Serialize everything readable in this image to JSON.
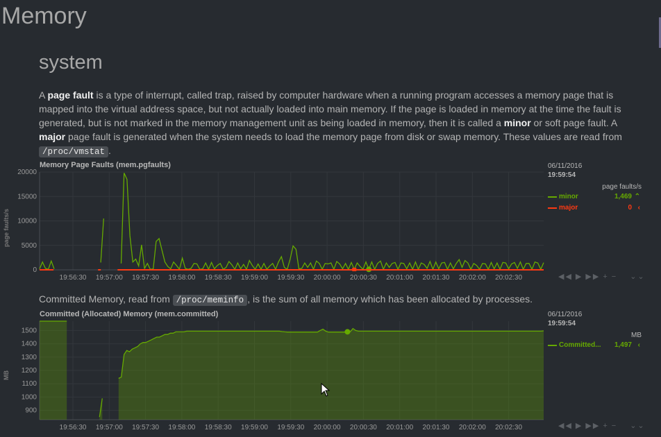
{
  "page": {
    "title": "Memory",
    "section": "system",
    "intro": {
      "p1": "A ",
      "k1": "page fault",
      "p2": " is a type of interrupt, called trap, raised by computer hardware when a running program accesses a memory page that is mapped into the virtual address space, but not actually loaded into main memory. If the page is loaded in memory at the time the fault is generated, but is not marked in the memory management unit as being loaded in memory, then it is called a ",
      "k2": "minor",
      "p3": " or soft page fault. A ",
      "k3": "major",
      "p4": " page fault is generated when the system needs to load the memory page from disk or swap memory. These values are read from ",
      "code": "/proc/vmstat",
      "p5": "."
    },
    "committed_intro": {
      "p1": "Committed Memory, read from ",
      "code": "/proc/meminfo",
      "p2": ", is the sum of all memory which has been allocated by processes."
    }
  },
  "colors": {
    "minor": "#66aa00",
    "major": "#fe3912",
    "committed": "#66aa00"
  },
  "toolbar": {
    "icons": [
      "rewind-icon",
      "play-icon",
      "forward-icon",
      "zoom-in-icon",
      "zoom-out-icon",
      "resize-icon"
    ],
    "glyphs": [
      "◀◀",
      "▶",
      "▶▶",
      "+",
      "−",
      "⌄⌄"
    ]
  },
  "legend1": {
    "date": "06/11/2016",
    "time": "19:59:54",
    "units": "page faults/s",
    "series": [
      {
        "name": "minor",
        "value": "1,469",
        "arrow": "⌃"
      },
      {
        "name": "major",
        "value": "0",
        "arrow": "‹"
      }
    ]
  },
  "legend2": {
    "date": "06/11/2016",
    "time": "19:59:54",
    "units": "MB",
    "series": [
      {
        "name": "Committed...",
        "value": "1,497",
        "arrow": "‹"
      }
    ]
  },
  "chart_data": [
    {
      "type": "line",
      "title": "Memory Page Faults (mem.pgfaults)",
      "ylabel": "page faults/s",
      "ylim": [
        0,
        20000
      ],
      "yticks": [
        0,
        5000,
        10000,
        15000,
        20000
      ],
      "xticks": [
        "19:56:30",
        "19:57:00",
        "19:57:30",
        "19:58:00",
        "19:58:30",
        "19:59:00",
        "19:59:30",
        "20:00:00",
        "20:00:30",
        "20:01:00",
        "20:01:30",
        "20:02:00",
        "20:02:30"
      ],
      "series": [
        {
          "name": "minor",
          "values": [
            200,
            1600,
            300,
            100,
            1800,
            200,
            null,
            null,
            null,
            null,
            null,
            null,
            null,
            null,
            null,
            null,
            null,
            null,
            null,
            null,
            null,
            1500,
            10500,
            null,
            null,
            null,
            null,
            null,
            1300,
            19800,
            18500,
            7000,
            1600,
            2200,
            800,
            5100,
            300,
            1300,
            100,
            200,
            5800,
            6400,
            4000,
            1600,
            700,
            200,
            1600,
            900,
            100,
            2400,
            300,
            100,
            300,
            1300,
            1200,
            100,
            200,
            1400,
            100,
            1500,
            200,
            900,
            1300,
            100,
            500,
            1700,
            1000,
            100,
            1400,
            200,
            1100,
            100,
            1900,
            900,
            100,
            1200,
            100,
            1300,
            100,
            800,
            1300,
            100,
            1600,
            2700,
            500,
            100,
            2200,
            4900,
            4200,
            200,
            300,
            1400,
            500,
            1400,
            100,
            1800,
            1300,
            100,
            1300,
            1200,
            1400,
            100,
            1700,
            1200,
            200,
            1300,
            100,
            1500,
            100,
            1400,
            700,
            100,
            1600,
            100,
            1600,
            100,
            1300,
            1800,
            100,
            1400,
            500,
            1300,
            1500,
            100,
            1400,
            1300,
            200,
            1400,
            100,
            1600,
            100,
            1400,
            1100,
            300,
            1700,
            100,
            1600,
            200,
            1400,
            1500,
            100,
            1400,
            200,
            1300,
            2100,
            500,
            1900,
            1400,
            100,
            1300,
            900,
            100,
            1300,
            1200,
            100,
            1500,
            200,
            1400,
            100,
            1500,
            1400,
            200,
            1200,
            1500,
            300,
            1600,
            100,
            1300,
            1300,
            100,
            1600,
            1400,
            100,
            1469
          ]
        },
        {
          "name": "major",
          "values": [
            0,
            0,
            0,
            0,
            0,
            0,
            null,
            null,
            null,
            null,
            null,
            null,
            null,
            null,
            null,
            null,
            null,
            null,
            null,
            null,
            null,
            0,
            0,
            null,
            null,
            null,
            null,
            null,
            0,
            0,
            0,
            0,
            0,
            0,
            0,
            0,
            0,
            0,
            0,
            0,
            0,
            0,
            0,
            0,
            0,
            0,
            0,
            0,
            0,
            0,
            0,
            0,
            0,
            0,
            0,
            0,
            0,
            0,
            0,
            0,
            0,
            0,
            0,
            0,
            0,
            0,
            0,
            0,
            0,
            0,
            0,
            0,
            0,
            0,
            0,
            0,
            0,
            0,
            0,
            0,
            0,
            0,
            0,
            0,
            0,
            0,
            0,
            0,
            0,
            0,
            0,
            0,
            0,
            0,
            0,
            0,
            0,
            0,
            0,
            0,
            0,
            0,
            0,
            0,
            0,
            0,
            0,
            0,
            0,
            0,
            0,
            0,
            0,
            0,
            0,
            0,
            0,
            0,
            0,
            0,
            0,
            0,
            0,
            0,
            0,
            0,
            0,
            0,
            0,
            0,
            0,
            0,
            0,
            0,
            0,
            0,
            0,
            0,
            0,
            0,
            0,
            0,
            0,
            0,
            0,
            0,
            0,
            0,
            0,
            0,
            0,
            0,
            0,
            0,
            0,
            0,
            0,
            0,
            0,
            0,
            0,
            0,
            0,
            0,
            0,
            0,
            0,
            0,
            0,
            0,
            0,
            0,
            0,
            0,
            0,
            0,
            0,
            0,
            0,
            0,
            0,
            0
          ]
        }
      ],
      "highlight_index": 113
    },
    {
      "type": "area",
      "title": "Committed (Allocated) Memory (mem.committed)",
      "ylabel": "MB",
      "ylim": [
        830,
        1570
      ],
      "yticks": [
        900,
        1000,
        1100,
        1200,
        1300,
        1400,
        1500
      ],
      "xticks": [
        "19:56:30",
        "19:57:00",
        "19:57:30",
        "19:58:00",
        "19:58:30",
        "19:59:00",
        "19:59:30",
        "20:00:00",
        "20:00:30",
        "20:01:00",
        "20:01:30",
        "20:02:00",
        "20:02:30"
      ],
      "series": [
        {
          "name": "Committed...",
          "values": [
            1570,
            1570,
            1570,
            1570,
            1570,
            1570,
            1570,
            1570,
            1570,
            1570,
            1570,
            null,
            null,
            null,
            null,
            null,
            null,
            null,
            null,
            null,
            null,
            null,
            850,
            990,
            null,
            null,
            null,
            null,
            null,
            1140,
            1150,
            1320,
            1350,
            1340,
            1360,
            1370,
            1380,
            1400,
            1410,
            1410,
            1420,
            1430,
            1440,
            1450,
            1450,
            1460,
            1470,
            1470,
            1480,
            1480,
            1490,
            1490,
            1490,
            1490,
            1495,
            1495,
            1495,
            1495,
            1495,
            1495,
            1495,
            1495,
            1495,
            1495,
            1495,
            1495,
            1495,
            1495,
            1495,
            1495,
            1495,
            1495,
            1495,
            1495,
            1495,
            1495,
            1495,
            1495,
            1495,
            1495,
            1495,
            1495,
            1495,
            1495,
            1495,
            1495,
            1495,
            1495,
            1495,
            1492,
            1490,
            1488,
            1488,
            1488,
            1488,
            1488,
            1488,
            1488,
            1488,
            1488,
            1488,
            1488,
            1488,
            1500,
            1510,
            1495,
            1488,
            1488,
            1488,
            1488,
            1488,
            1488,
            1488,
            1490,
            1490,
            1515,
            1500,
            1495,
            1495,
            1495,
            1495,
            1495,
            1495,
            1495,
            1495,
            1495,
            1495,
            1495,
            1495,
            1495,
            1495,
            1495,
            1495,
            1495,
            1495,
            1495,
            1495,
            1495,
            1495,
            1495,
            1495,
            1495,
            1495,
            1495,
            1495,
            1495,
            1495,
            1495,
            1495,
            1495,
            1495,
            1495,
            1495,
            1495,
            1495,
            1495,
            1495,
            1495,
            1495,
            1495,
            1495,
            1495,
            1495,
            1495,
            1495,
            1495,
            1495,
            1495,
            1495,
            1495,
            1495,
            1495,
            1495,
            1495,
            1495,
            1495,
            1495,
            1495,
            1495,
            1495,
            1495,
            1495,
            1495,
            1495,
            1495,
            1497
          ]
        }
      ],
      "highlight_index": 113
    }
  ]
}
